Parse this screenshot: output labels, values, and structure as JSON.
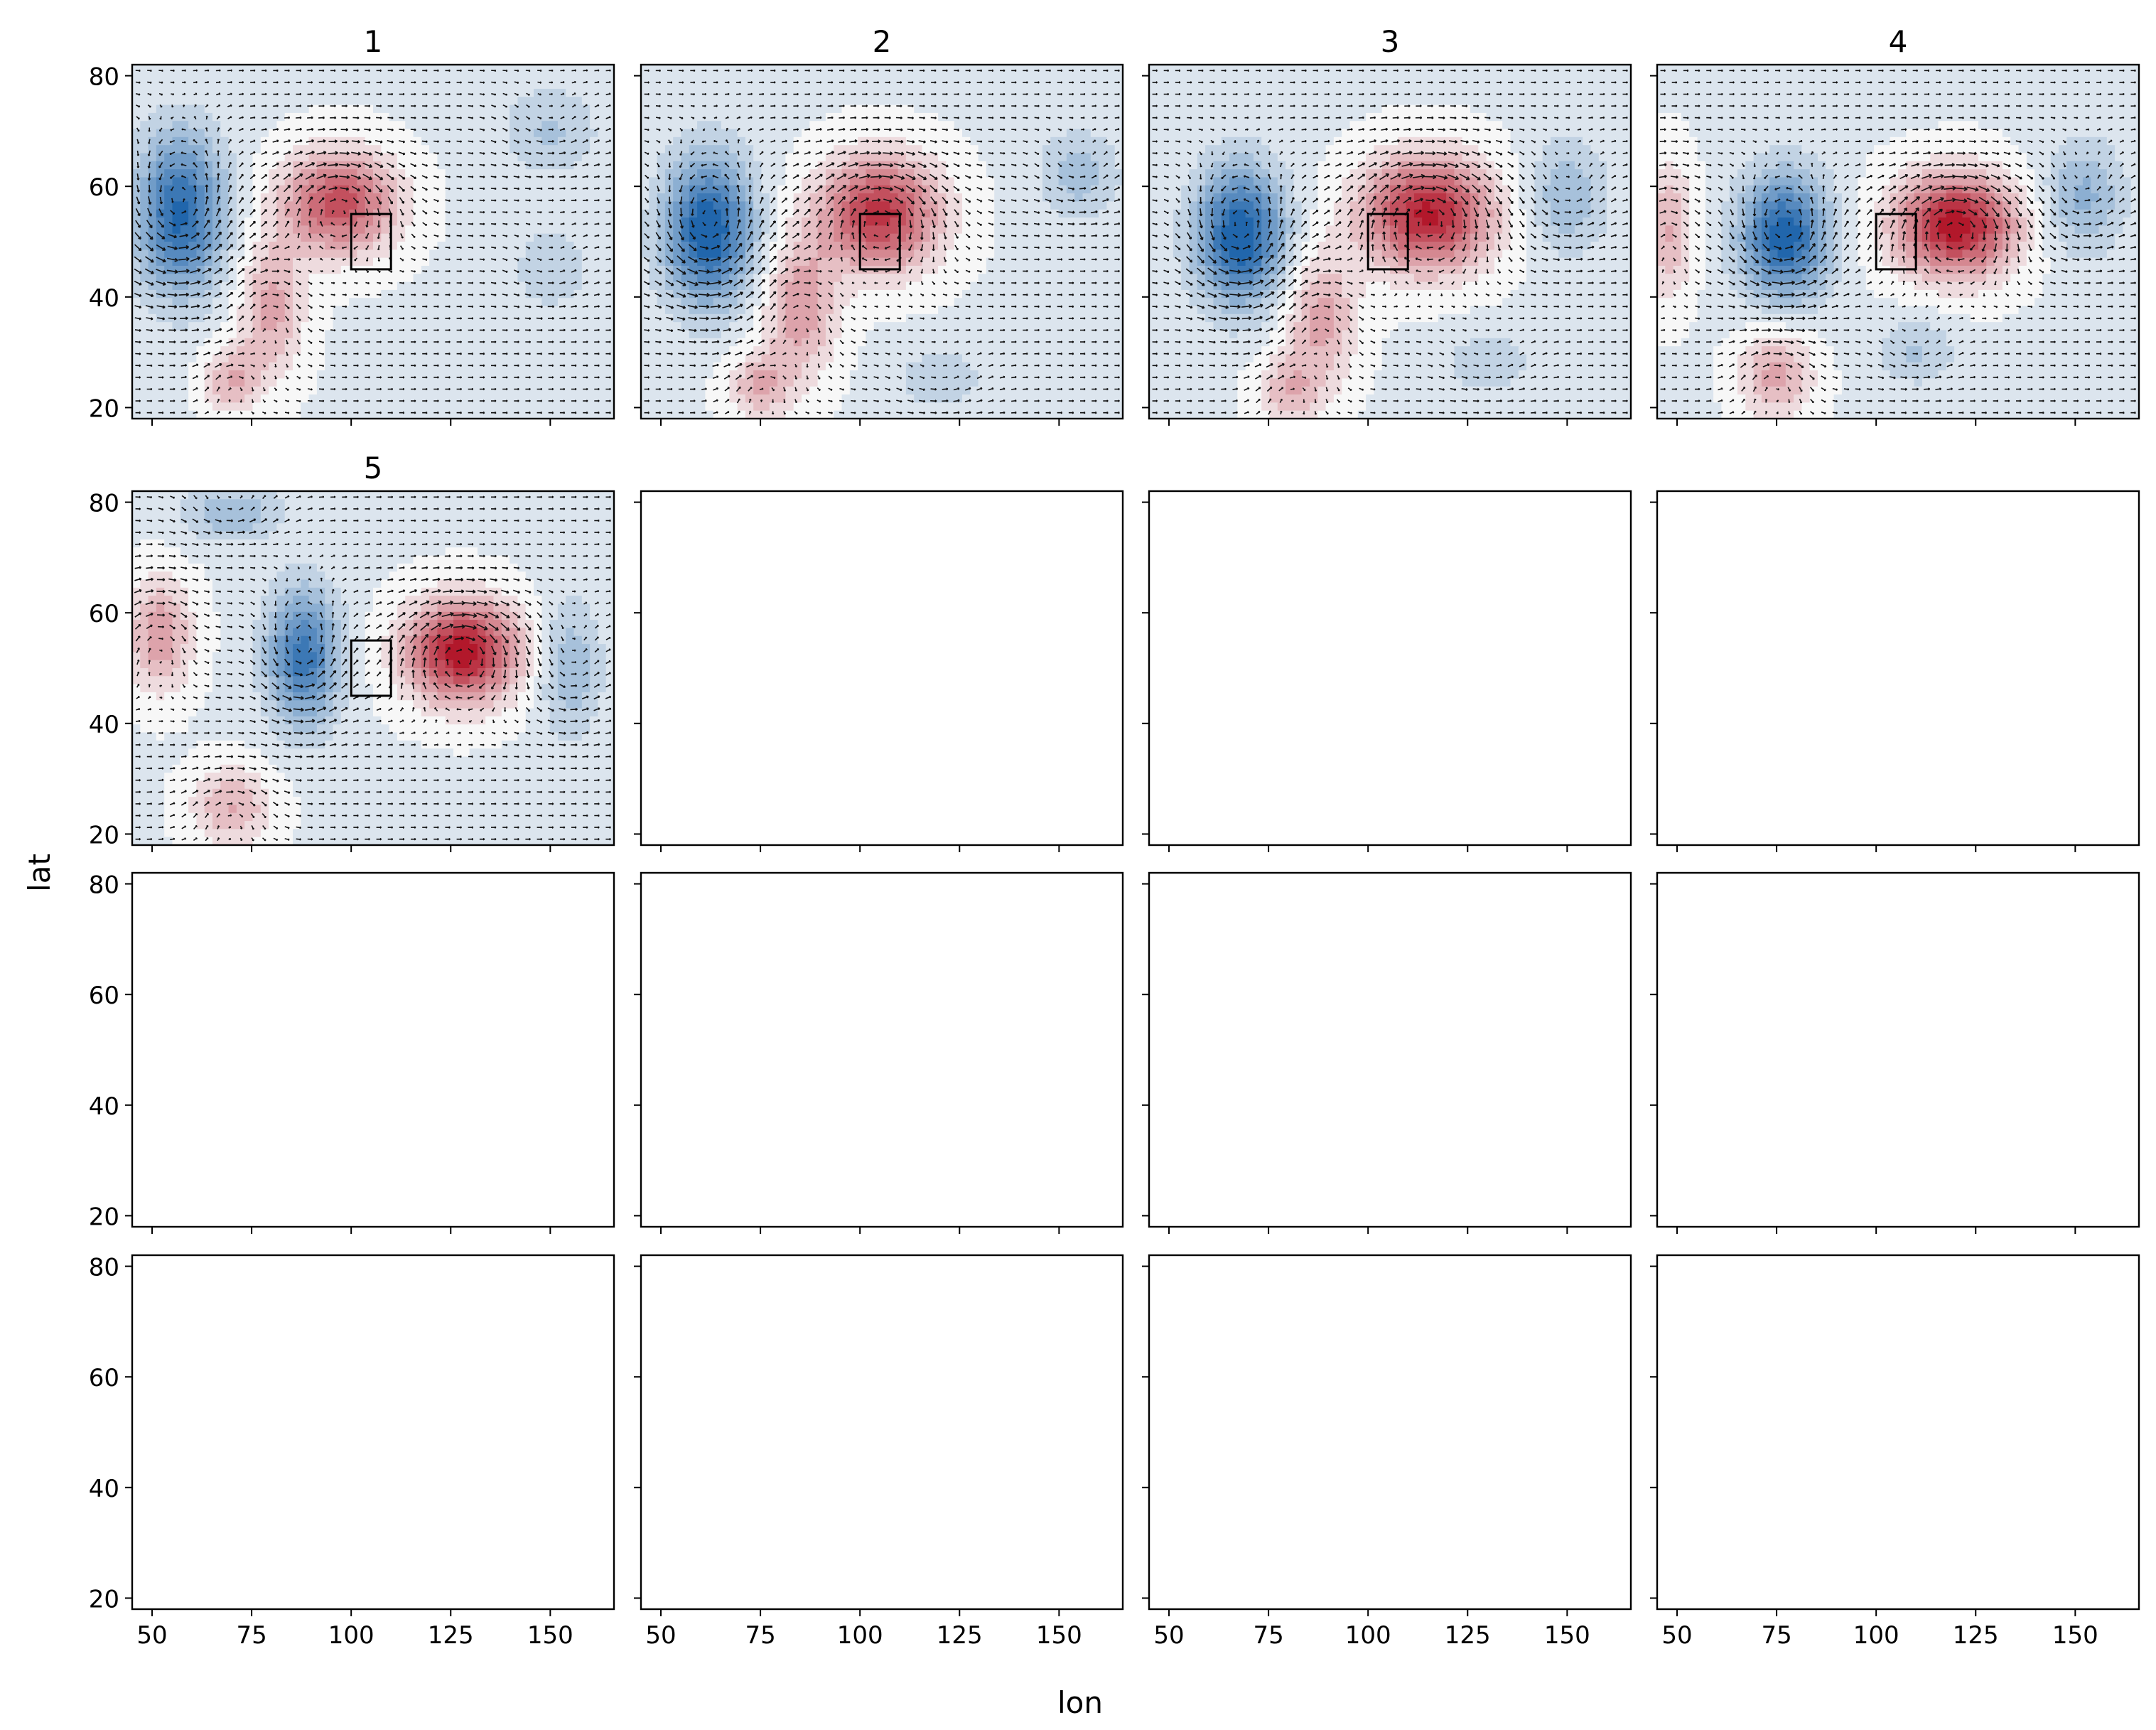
{
  "figure": {
    "xlabel": "lon",
    "ylabel": "lat"
  },
  "chart_data": {
    "type": "heatmap",
    "layout": {
      "rows": 4,
      "cols": 4
    },
    "x_axis": {
      "label": "lon",
      "range": [
        45,
        166
      ],
      "ticks": [
        50,
        75,
        100,
        125,
        150
      ]
    },
    "y_axis": {
      "label": "lat",
      "range": [
        18,
        82
      ],
      "ticks": [
        20,
        40,
        60,
        80
      ]
    },
    "colormap": {
      "name": "RdBu_r",
      "neg": "#2166ac",
      "mid": "#f7f7f7",
      "pos": "#b2182b"
    },
    "overlay": "wind vectors (quiver)",
    "box_region": {
      "lon": [
        100,
        110
      ],
      "lat": [
        45,
        55
      ]
    },
    "panels": [
      {
        "title": "1",
        "has_data": true,
        "features": [
          {
            "sign": -1,
            "lon": 57,
            "lat": 55,
            "amp": 0.9,
            "rx": 11,
            "ry": 14
          },
          {
            "sign": 1,
            "lon": 97,
            "lat": 57,
            "amp": 0.85,
            "rx": 14,
            "ry": 9
          },
          {
            "sign": 1,
            "lon": 80,
            "lat": 38,
            "amp": 0.45,
            "rx": 8,
            "ry": 12
          },
          {
            "sign": 1,
            "lon": 70,
            "lat": 25,
            "amp": 0.4,
            "rx": 7,
            "ry": 6
          },
          {
            "sign": -1,
            "lon": 150,
            "lat": 70,
            "amp": 0.25,
            "rx": 12,
            "ry": 8
          },
          {
            "sign": -1,
            "lon": 150,
            "lat": 45,
            "amp": 0.2,
            "rx": 10,
            "ry": 8
          }
        ]
      },
      {
        "title": "2",
        "has_data": true,
        "features": [
          {
            "sign": -1,
            "lon": 62,
            "lat": 52,
            "amp": 1.0,
            "rx": 11,
            "ry": 13
          },
          {
            "sign": 1,
            "lon": 105,
            "lat": 55,
            "amp": 0.95,
            "rx": 15,
            "ry": 10
          },
          {
            "sign": 1,
            "lon": 85,
            "lat": 38,
            "amp": 0.5,
            "rx": 9,
            "ry": 12
          },
          {
            "sign": 1,
            "lon": 75,
            "lat": 24,
            "amp": 0.4,
            "rx": 8,
            "ry": 6
          },
          {
            "sign": -1,
            "lon": 155,
            "lat": 62,
            "amp": 0.3,
            "rx": 10,
            "ry": 8
          },
          {
            "sign": -1,
            "lon": 120,
            "lat": 25,
            "amp": 0.2,
            "rx": 12,
            "ry": 6
          }
        ]
      },
      {
        "title": "3",
        "has_data": true,
        "features": [
          {
            "sign": -1,
            "lon": 68,
            "lat": 51,
            "amp": 1.0,
            "rx": 11,
            "ry": 12
          },
          {
            "sign": 1,
            "lon": 115,
            "lat": 55,
            "amp": 1.05,
            "rx": 16,
            "ry": 10
          },
          {
            "sign": 1,
            "lon": 88,
            "lat": 36,
            "amp": 0.45,
            "rx": 9,
            "ry": 12
          },
          {
            "sign": 1,
            "lon": 80,
            "lat": 23,
            "amp": 0.35,
            "rx": 8,
            "ry": 6
          },
          {
            "sign": -1,
            "lon": 150,
            "lat": 58,
            "amp": 0.35,
            "rx": 10,
            "ry": 10
          },
          {
            "sign": -1,
            "lon": 130,
            "lat": 28,
            "amp": 0.2,
            "rx": 12,
            "ry": 6
          }
        ]
      },
      {
        "title": "4",
        "has_data": true,
        "features": [
          {
            "sign": -1,
            "lon": 77,
            "lat": 51,
            "amp": 0.95,
            "rx": 11,
            "ry": 11
          },
          {
            "sign": 1,
            "lon": 120,
            "lat": 53,
            "amp": 1.1,
            "rx": 15,
            "ry": 9
          },
          {
            "sign": 1,
            "lon": 48,
            "lat": 52,
            "amp": 0.4,
            "rx": 6,
            "ry": 12
          },
          {
            "sign": 1,
            "lon": 75,
            "lat": 26,
            "amp": 0.45,
            "rx": 9,
            "ry": 8
          },
          {
            "sign": -1,
            "lon": 152,
            "lat": 58,
            "amp": 0.4,
            "rx": 10,
            "ry": 10
          },
          {
            "sign": -1,
            "lon": 110,
            "lat": 30,
            "amp": 0.25,
            "rx": 10,
            "ry": 6
          }
        ]
      },
      {
        "title": "5",
        "has_data": true,
        "features": [
          {
            "sign": -1,
            "lon": 88,
            "lat": 52,
            "amp": 0.8,
            "rx": 9,
            "ry": 12
          },
          {
            "sign": 1,
            "lon": 128,
            "lat": 53,
            "amp": 1.1,
            "rx": 14,
            "ry": 9
          },
          {
            "sign": 1,
            "lon": 52,
            "lat": 56,
            "amp": 0.5,
            "rx": 8,
            "ry": 10
          },
          {
            "sign": 1,
            "lon": 70,
            "lat": 25,
            "amp": 0.4,
            "rx": 10,
            "ry": 7
          },
          {
            "sign": -1,
            "lon": 70,
            "lat": 78,
            "amp": 0.35,
            "rx": 12,
            "ry": 5
          },
          {
            "sign": -1,
            "lon": 155,
            "lat": 50,
            "amp": 0.35,
            "rx": 8,
            "ry": 12
          }
        ]
      },
      {
        "title": "",
        "has_data": false,
        "features": []
      },
      {
        "title": "",
        "has_data": false,
        "features": []
      },
      {
        "title": "",
        "has_data": false,
        "features": []
      },
      {
        "title": "",
        "has_data": false,
        "features": []
      },
      {
        "title": "",
        "has_data": false,
        "features": []
      },
      {
        "title": "",
        "has_data": false,
        "features": []
      },
      {
        "title": "",
        "has_data": false,
        "features": []
      },
      {
        "title": "",
        "has_data": false,
        "features": []
      },
      {
        "title": "",
        "has_data": false,
        "features": []
      },
      {
        "title": "",
        "has_data": false,
        "features": []
      },
      {
        "title": "",
        "has_data": false,
        "features": []
      }
    ]
  }
}
